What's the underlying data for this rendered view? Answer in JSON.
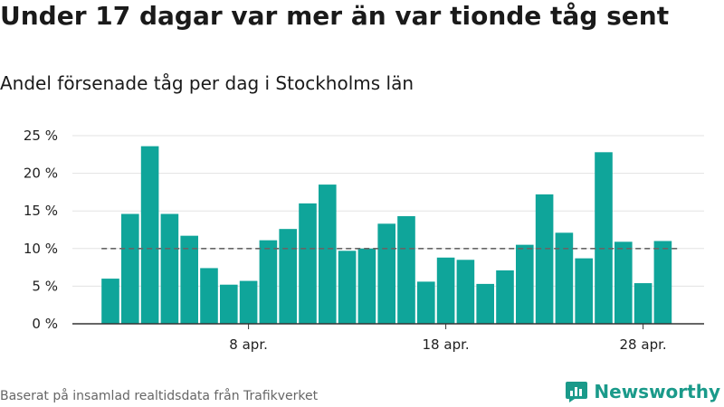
{
  "title": "Under 17 dagar var mer än var tionde tåg sent",
  "subtitle": "Andel försenade tåg per dag i Stockholms län",
  "source": "Baserat på insamlad realtidsdata från Trafikverket",
  "brand": {
    "name": "Newsworthy",
    "color": "#1a9a8a",
    "icon": "newsworthy-logo-icon"
  },
  "chart_data": {
    "type": "bar",
    "title": "Under 17 dagar var mer än var tionde tåg sent",
    "subtitle": "Andel försenade tåg per dag i Stockholms län",
    "xlabel": "",
    "ylabel": "",
    "categories": [
      "1 apr.",
      "2 apr.",
      "3 apr.",
      "4 apr.",
      "5 apr.",
      "6 apr.",
      "7 apr.",
      "8 apr.",
      "9 apr.",
      "10 apr.",
      "11 apr.",
      "12 apr.",
      "13 apr.",
      "14 apr.",
      "15 apr.",
      "16 apr.",
      "17 apr.",
      "18 apr.",
      "19 apr.",
      "20 apr.",
      "21 apr.",
      "22 apr.",
      "23 apr.",
      "24 apr.",
      "25 apr.",
      "26 apr.",
      "27 apr.",
      "28 apr.",
      "29 apr.",
      "30 apr."
    ],
    "values": [
      6.0,
      14.6,
      23.6,
      14.6,
      11.7,
      7.4,
      5.2,
      5.7,
      11.1,
      12.6,
      16.0,
      18.5,
      9.7,
      10.0,
      13.3,
      14.3,
      5.6,
      8.8,
      8.5,
      5.3,
      7.1,
      10.5,
      17.2,
      12.1,
      8.7,
      22.8,
      10.9,
      5.4,
      11.0,
      0
    ],
    "ylim": [
      0,
      25
    ],
    "yticks": [
      0,
      5,
      10,
      15,
      20,
      25
    ],
    "ytick_labels": [
      "0 %",
      "5 %",
      "10 %",
      "15 %",
      "20 %",
      "25 %"
    ],
    "xtick_labels": [
      {
        "category": "8 apr.",
        "label": "8 apr."
      },
      {
        "category": "18 apr.",
        "label": "18 apr."
      },
      {
        "category": "28 apr.",
        "label": "28 apr."
      }
    ],
    "reference_line": {
      "value": 10,
      "style": "dashed",
      "color": "#666666"
    },
    "bar_color": "#0fa59a",
    "grid": true,
    "legend": "none"
  }
}
